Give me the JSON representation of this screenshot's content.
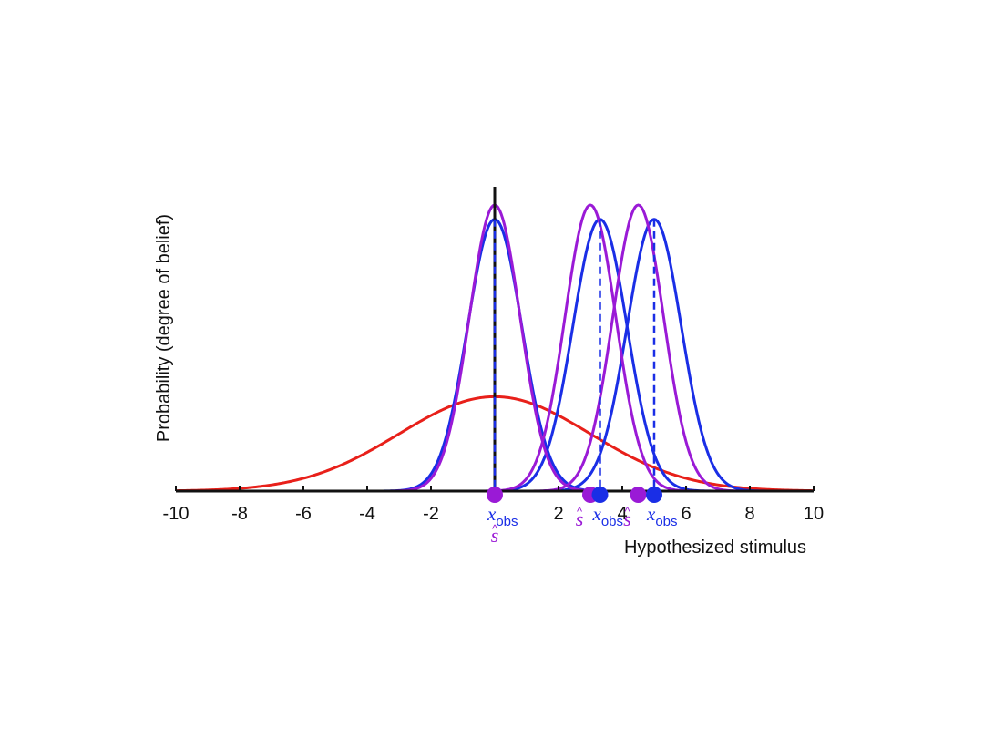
{
  "chart_data": {
    "type": "line",
    "xlabel": "Hypothesized stimulus",
    "ylabel": "Probability (degree of belief)",
    "xlim": [
      -10,
      10
    ],
    "ylim": [
      0,
      1
    ],
    "xticks": [
      -10,
      -8,
      -6,
      -4,
      -2,
      0,
      2,
      4,
      6,
      8,
      10
    ],
    "xtick_labels": [
      "-10",
      "-8",
      "-6",
      "-4",
      "-2",
      "",
      "2",
      "4",
      "6",
      "8",
      "10"
    ],
    "grid": false,
    "legend": "none",
    "colors": {
      "prior": "#e8201a",
      "likelihood": "#1a2ee6",
      "posterior": "#9a1ad6"
    },
    "series": [
      {
        "kind": "prior",
        "color": "#e8201a",
        "mean": 0,
        "sd": 3,
        "peak": 0.33
      },
      {
        "kind": "likelihood",
        "color": "#1a2ee6",
        "mean": 0,
        "sd": 0.85,
        "peak": 0.95
      },
      {
        "kind": "likelihood",
        "color": "#1a2ee6",
        "mean": 3.3,
        "sd": 0.85,
        "peak": 0.95
      },
      {
        "kind": "likelihood",
        "color": "#1a2ee6",
        "mean": 5,
        "sd": 0.85,
        "peak": 0.95
      },
      {
        "kind": "posterior",
        "color": "#9a1ad6",
        "mean": 0,
        "sd": 0.8,
        "peak": 1.0
      },
      {
        "kind": "posterior",
        "color": "#9a1ad6",
        "mean": 3,
        "sd": 0.8,
        "peak": 1.0
      },
      {
        "kind": "posterior",
        "color": "#9a1ad6",
        "mean": 4.5,
        "sd": 0.8,
        "peak": 1.0
      }
    ],
    "observations": [
      {
        "x_obs": 0,
        "s_hat": 0,
        "solid_line": true
      },
      {
        "x_obs": 3.3,
        "s_hat": 3,
        "solid_line": false
      },
      {
        "x_obs": 5,
        "s_hat": 4.5,
        "solid_line": false
      }
    ],
    "annotations": {
      "x_obs_main": "x",
      "x_obs_sub": "obs",
      "s_hat": "s",
      "hat_mark": "^"
    }
  }
}
